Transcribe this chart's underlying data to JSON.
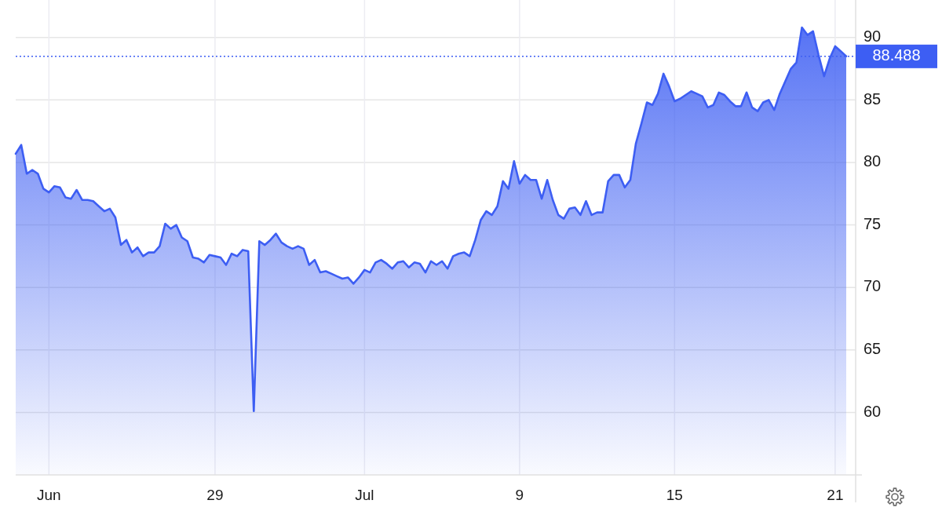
{
  "chart_data": {
    "type": "area",
    "categories": [
      null,
      null,
      null,
      null,
      null,
      null,
      "Jun",
      null,
      null,
      null,
      null,
      null,
      null,
      null,
      null,
      null,
      null,
      null,
      null,
      null,
      null,
      null,
      null,
      null,
      null,
      null,
      null,
      null,
      null,
      null,
      null,
      null,
      null,
      null,
      null,
      null,
      "29",
      null,
      null,
      null,
      null,
      null,
      null,
      null,
      null,
      null,
      null,
      null,
      null,
      null,
      null,
      null,
      null,
      null,
      null,
      null,
      null,
      null,
      null,
      null,
      null,
      null,
      null,
      "Jul",
      null,
      null,
      null,
      null,
      null,
      null,
      null,
      null,
      null,
      null,
      null,
      null,
      null,
      null,
      null,
      null,
      null,
      null,
      null,
      null,
      null,
      null,
      null,
      null,
      null,
      null,
      null,
      "9",
      null,
      null,
      null,
      null,
      null,
      null,
      null,
      null,
      null,
      null,
      null,
      null,
      null,
      null,
      null,
      null,
      null,
      null,
      null,
      null,
      null,
      null,
      null,
      null,
      null,
      null,
      null,
      "15",
      null,
      null,
      null,
      null,
      null,
      null,
      null,
      null,
      null,
      null,
      null,
      null,
      null,
      null,
      null,
      null,
      null,
      null,
      null,
      null,
      null,
      null,
      null,
      null,
      null,
      null,
      null,
      null,
      "21",
      null,
      null
    ],
    "values": [
      80.7,
      81.4,
      79.1,
      79.4,
      79.1,
      77.9,
      77.6,
      78.1,
      78.0,
      77.2,
      77.1,
      77.8,
      77.0,
      77.0,
      76.9,
      76.5,
      76.1,
      76.3,
      75.6,
      73.4,
      73.8,
      72.8,
      73.2,
      72.5,
      72.8,
      72.8,
      73.3,
      75.1,
      74.7,
      75.0,
      74.0,
      73.7,
      72.4,
      72.3,
      72.0,
      72.6,
      72.5,
      72.4,
      71.8,
      72.7,
      72.5,
      73.0,
      72.9,
      60.1,
      73.7,
      73.4,
      73.8,
      74.3,
      73.6,
      73.3,
      73.1,
      73.3,
      73.1,
      71.8,
      72.2,
      71.2,
      71.3,
      71.1,
      70.9,
      70.7,
      70.8,
      70.3,
      70.8,
      71.4,
      71.2,
      72.0,
      72.2,
      71.9,
      71.5,
      72.0,
      72.1,
      71.6,
      72.0,
      71.9,
      71.2,
      72.1,
      71.8,
      72.1,
      71.5,
      72.5,
      72.7,
      72.8,
      72.5,
      73.8,
      75.4,
      76.1,
      75.8,
      76.5,
      78.5,
      77.9,
      80.1,
      78.3,
      79.0,
      78.6,
      78.6,
      77.1,
      78.6,
      77.0,
      75.8,
      75.5,
      76.3,
      76.4,
      75.8,
      76.9,
      75.8,
      76.0,
      76.0,
      78.5,
      79.0,
      79.0,
      78.0,
      78.6,
      81.5,
      83.1,
      84.8,
      84.6,
      85.5,
      87.1,
      86.1,
      84.9,
      85.1,
      85.4,
      85.7,
      85.5,
      85.3,
      84.4,
      84.6,
      85.6,
      85.4,
      84.9,
      84.5,
      84.5,
      85.6,
      84.4,
      84.1,
      84.8,
      85.0,
      84.2,
      85.5,
      86.5,
      87.5,
      88.0,
      90.8,
      90.2,
      90.5,
      88.6,
      86.9,
      88.3,
      89.3,
      88.9,
      88.5
    ],
    "color": "#3d5ef3",
    "ylim": [
      55,
      93
    ],
    "yticks": [
      60,
      65,
      70,
      75,
      80,
      85,
      90
    ],
    "grid": true,
    "ref_lines": [
      {
        "axis": "y",
        "value": 88.488,
        "label": "88.488",
        "color": "#3d5ef3",
        "line_style": "dotted"
      }
    ]
  }
}
